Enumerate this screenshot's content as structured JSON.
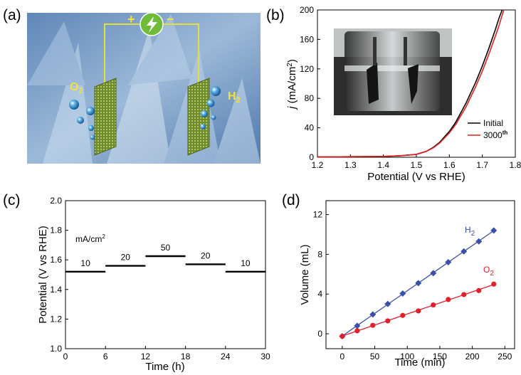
{
  "panels": {
    "a": {
      "label": "(a)",
      "plus": "+",
      "minus": "−",
      "o2_label": "O",
      "o2_sub": "2",
      "h2_label": "H",
      "h2_sub": "2",
      "icon": "lightning-power-icon",
      "colors": {
        "background": "#7fa3c9",
        "wire": "#e0e040",
        "power": "#6ebc3a",
        "label": "#f2e23a",
        "electrode": "#7f9a35"
      }
    },
    "b": {
      "label": "(b)",
      "legend": [
        {
          "name": "Initial",
          "color": "#000000"
        },
        {
          "name": "3000",
          "sup": "th",
          "color": "#e02020"
        }
      ]
    },
    "c": {
      "label": "(c)",
      "unit_label": "mA/cm",
      "unit_sup": "2"
    },
    "d": {
      "label": "(d)",
      "h2_label": "H",
      "h2_sub": "2",
      "o2_label": "O",
      "o2_sub": "2"
    }
  },
  "chart_data": [
    {
      "panel": "b",
      "type": "line",
      "xlabel": "Potential (V vs RHE)",
      "ylabel": "j (mA/cm2)",
      "xlim": [
        1.2,
        1.8
      ],
      "ylim": [
        0,
        200
      ],
      "xticks": [
        1.2,
        1.3,
        1.4,
        1.5,
        1.6,
        1.7,
        1.8
      ],
      "yticks": [
        0,
        40,
        80,
        120,
        160,
        200
      ],
      "legend_position": "bottom-right",
      "series": [
        {
          "name": "Initial",
          "color": "#000000",
          "x": [
            1.2,
            1.3,
            1.4,
            1.45,
            1.5,
            1.53,
            1.55,
            1.57,
            1.6,
            1.62,
            1.65,
            1.68,
            1.7,
            1.72,
            1.74,
            1.75,
            1.76
          ],
          "y": [
            0.5,
            0.8,
            1.2,
            2,
            4,
            8,
            13,
            20,
            35,
            48,
            73,
            102,
            124,
            148,
            174,
            188,
            202
          ]
        },
        {
          "name": "3000th",
          "color": "#e02020",
          "x": [
            1.2,
            1.3,
            1.4,
            1.45,
            1.5,
            1.53,
            1.55,
            1.57,
            1.6,
            1.62,
            1.65,
            1.68,
            1.7,
            1.72,
            1.74,
            1.75,
            1.765
          ],
          "y": [
            0.5,
            0.8,
            1.2,
            2,
            4,
            8,
            12.5,
            19,
            33,
            45,
            68,
            96,
            117,
            140,
            165,
            178,
            202
          ]
        }
      ]
    },
    {
      "panel": "c",
      "type": "line",
      "xlabel": "Time (h)",
      "ylabel": "Potential (V vs RHE)",
      "xlim": [
        0,
        30
      ],
      "ylim": [
        1.0,
        2.0
      ],
      "xticks": [
        0,
        6,
        12,
        18,
        24,
        30
      ],
      "yticks": [
        1.0,
        1.2,
        1.4,
        1.6,
        1.8,
        2.0
      ],
      "segments": [
        {
          "x0": 0,
          "x1": 6,
          "y": 1.52,
          "label": "10"
        },
        {
          "x0": 6,
          "x1": 12,
          "y": 1.56,
          "label": "20"
        },
        {
          "x0": 12,
          "x1": 18,
          "y": 1.625,
          "label": "50"
        },
        {
          "x0": 18,
          "x1": 24,
          "y": 1.57,
          "label": "20"
        },
        {
          "x0": 24,
          "x1": 30,
          "y": 1.52,
          "label": "10"
        }
      ]
    },
    {
      "panel": "d",
      "type": "scatter",
      "xlabel": "Time (min)",
      "ylabel": "Volume (mL)",
      "xlim": [
        -25,
        265
      ],
      "ylim": [
        -1.5,
        13.4
      ],
      "xticks": [
        0,
        50,
        100,
        150,
        200,
        250
      ],
      "yticks": [
        0,
        4,
        8,
        12
      ],
      "series": [
        {
          "name": "H2",
          "color": "#3a4fa8",
          "marker": "diamond",
          "x": [
            0,
            23,
            47,
            70,
            93,
            117,
            140,
            163,
            187,
            210,
            233
          ],
          "y": [
            -0.25,
            0.8,
            1.95,
            3.0,
            4.05,
            5.1,
            6.1,
            7.2,
            8.3,
            9.3,
            10.4
          ]
        },
        {
          "name": "O2",
          "color": "#e0202c",
          "marker": "circle",
          "x": [
            0,
            23,
            47,
            70,
            93,
            117,
            140,
            163,
            187,
            210,
            233
          ],
          "y": [
            -0.25,
            0.3,
            0.85,
            1.3,
            1.85,
            2.3,
            2.9,
            3.45,
            3.95,
            4.35,
            5.0
          ]
        }
      ]
    }
  ]
}
